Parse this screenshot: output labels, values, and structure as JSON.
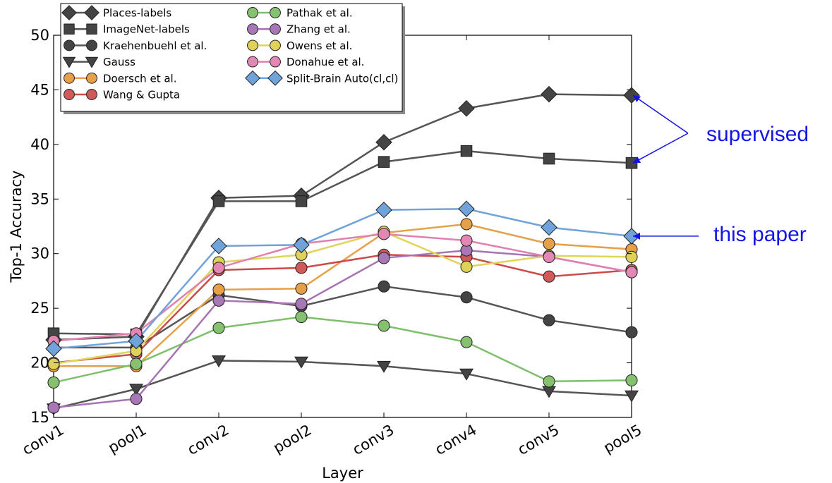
{
  "chart_data": {
    "type": "line",
    "title": "",
    "xlabel": "Layer",
    "ylabel": "Top-1 Accuracy",
    "ylim": [
      15,
      50
    ],
    "yticks": [
      15,
      20,
      25,
      30,
      35,
      40,
      45,
      50
    ],
    "categories": [
      "conv1",
      "pool1",
      "conv2",
      "pool2",
      "conv3",
      "conv4",
      "conv5",
      "pool5"
    ],
    "grid": false,
    "legend_position": "top-left",
    "series": [
      {
        "name": "Places-labels",
        "marker": "diamond",
        "color": "#555555",
        "marker_color": "#444444",
        "values": [
          22.1,
          22.4,
          35.1,
          35.3,
          40.2,
          43.3,
          44.6,
          44.5
        ]
      },
      {
        "name": "ImageNet-labels",
        "marker": "square",
        "color": "#555555",
        "marker_color": "#444444",
        "values": [
          22.7,
          22.6,
          34.8,
          34.8,
          38.4,
          39.4,
          38.7,
          38.3
        ]
      },
      {
        "name": "Kraehenbuehl et al.",
        "marker": "circle",
        "color": "#555555",
        "marker_color": "#444444",
        "values": [
          21.4,
          21.4,
          26.2,
          25.2,
          27.0,
          26.0,
          23.9,
          22.8
        ]
      },
      {
        "name": "Gauss",
        "marker": "triangle-down",
        "color": "#555555",
        "marker_color": "#444444",
        "values": [
          15.8,
          17.6,
          20.2,
          20.1,
          19.7,
          19.0,
          17.4,
          17.0
        ]
      },
      {
        "name": "Doersch et al.",
        "marker": "circle",
        "color": "#e6a04a",
        "marker_color": "#e6a04a",
        "values": [
          19.7,
          19.7,
          26.7,
          26.8,
          31.9,
          32.7,
          30.9,
          30.4
        ]
      },
      {
        "name": "Wang & Gupta",
        "marker": "circle",
        "color": "#cc4a4a",
        "marker_color": "#d05a5a",
        "values": [
          20.0,
          20.8,
          28.5,
          28.7,
          29.9,
          29.7,
          27.9,
          28.5
        ]
      },
      {
        "name": "Pathak et al.",
        "marker": "circle",
        "color": "#7dbf6a",
        "marker_color": "#86c16f",
        "values": [
          18.2,
          19.9,
          23.2,
          24.2,
          23.4,
          21.9,
          18.3,
          18.4
        ]
      },
      {
        "name": "Zhang et al.",
        "marker": "circle",
        "color": "#a674b3",
        "marker_color": "#a877b6",
        "values": [
          15.9,
          16.7,
          25.7,
          25.4,
          29.6,
          30.3,
          29.7,
          28.3
        ]
      },
      {
        "name": "Owens et al.",
        "marker": "circle",
        "color": "#e0d45a",
        "marker_color": "#dfd25a",
        "values": [
          19.9,
          21.1,
          29.2,
          29.9,
          32.0,
          28.8,
          29.8,
          29.7
        ]
      },
      {
        "name": "Donahue et al.",
        "marker": "circle",
        "color": "#e07fb0",
        "marker_color": "#e487b5",
        "values": [
          22.0,
          22.7,
          28.7,
          30.9,
          31.8,
          31.2,
          29.7,
          28.3
        ]
      },
      {
        "name": "Split-Brain Auto(cl,cl)",
        "marker": "diamond",
        "color": "#6fa3da",
        "marker_color": "#6fa3da",
        "values": [
          21.3,
          22.0,
          30.7,
          30.8,
          34.0,
          34.1,
          32.4,
          31.6
        ]
      }
    ],
    "annotations": [
      {
        "text": "supervised",
        "color": "#1414e6",
        "targets": [
          {
            "category": "pool5",
            "value": 44.5
          },
          {
            "category": "pool5",
            "value": 38.3
          }
        ]
      },
      {
        "text": "this paper",
        "color": "#1414e6",
        "targets": [
          {
            "category": "pool5",
            "value": 31.6
          }
        ]
      }
    ]
  }
}
